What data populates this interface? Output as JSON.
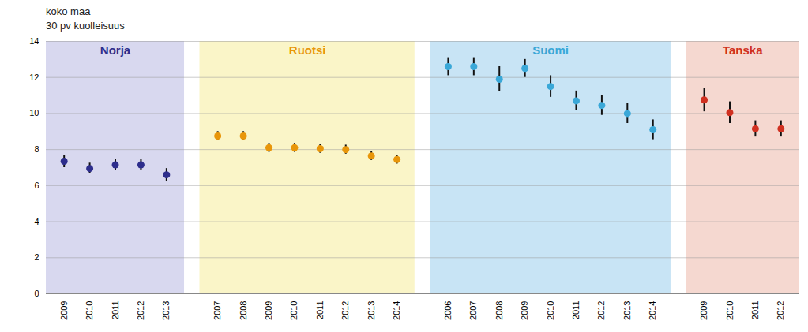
{
  "chart_data": {
    "type": "errorbar",
    "title": "koko maa",
    "subtitle": "30 pv kuolleisuus",
    "series": [
      {
        "name": "Norja",
        "color": "#2d2d8c",
        "background": "#d8d8ef",
        "categories": [
          "2009",
          "2010",
          "2011",
          "2012",
          "2013"
        ],
        "values": [
          7.35,
          6.95,
          7.15,
          7.15,
          6.6
        ],
        "low": [
          7.0,
          6.65,
          6.85,
          6.85,
          6.25
        ],
        "high": [
          7.7,
          7.25,
          7.45,
          7.45,
          6.95
        ]
      },
      {
        "name": "Ruotsi",
        "color": "#e8960a",
        "background": "#faf5c8",
        "categories": [
          "2007",
          "2008",
          "2009",
          "2010",
          "2011",
          "2012",
          "2013",
          "2014"
        ],
        "values": [
          8.75,
          8.75,
          8.1,
          8.1,
          8.05,
          8.0,
          7.65,
          7.45
        ],
        "low": [
          8.5,
          8.5,
          7.85,
          7.85,
          7.8,
          7.75,
          7.4,
          7.2
        ],
        "high": [
          9.0,
          9.0,
          8.35,
          8.35,
          8.3,
          8.25,
          7.9,
          7.7
        ]
      },
      {
        "name": "Suomi",
        "color": "#3aa8d8",
        "background": "#c8e4f5",
        "categories": [
          "2006",
          "2007",
          "2008",
          "2009",
          "2010",
          "2011",
          "2012",
          "2013",
          "2014"
        ],
        "values": [
          12.6,
          12.6,
          11.9,
          12.5,
          11.5,
          10.7,
          10.45,
          10.0,
          9.1
        ],
        "low": [
          12.1,
          12.1,
          11.2,
          12.0,
          10.9,
          10.15,
          9.9,
          9.45,
          8.55
        ],
        "high": [
          13.1,
          13.1,
          12.6,
          13.0,
          12.1,
          11.25,
          11.0,
          10.55,
          9.65
        ]
      },
      {
        "name": "Tanska",
        "color": "#d03020",
        "background": "#f5d8d0",
        "categories": [
          "2009",
          "2010",
          "2011",
          "2012"
        ],
        "values": [
          10.75,
          10.05,
          9.15,
          9.15
        ],
        "low": [
          10.1,
          9.45,
          8.7,
          8.7
        ],
        "high": [
          11.4,
          10.65,
          9.6,
          9.6
        ]
      }
    ],
    "ylim": [
      0,
      14
    ],
    "yticks": [
      0,
      2,
      4,
      6,
      8,
      10,
      12,
      14
    ],
    "grid": true
  }
}
